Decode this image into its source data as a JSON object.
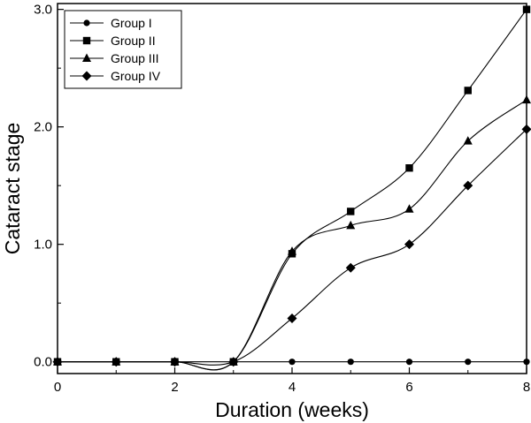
{
  "chart_data": {
    "type": "line",
    "xlabel": "Duration (weeks)",
    "ylabel": "Cataract stage",
    "xlim": [
      0,
      8
    ],
    "ylim": [
      -0.1,
      3.05
    ],
    "x_ticks": [
      0,
      2,
      4,
      6,
      8
    ],
    "x_tick_labels": [
      "0",
      "2",
      "4",
      "6",
      "8"
    ],
    "y_ticks": [
      0,
      1,
      2,
      3
    ],
    "y_tick_labels": [
      "0.0",
      "1.0",
      "2.0",
      "3.0"
    ],
    "grid": false,
    "legend_position": "top-left",
    "series": [
      {
        "name": "Group I",
        "marker": "circle",
        "x": [
          0,
          1,
          2,
          3,
          4,
          5,
          6,
          7,
          8
        ],
        "y": [
          0,
          0,
          0,
          0,
          0,
          0,
          0,
          0,
          0
        ]
      },
      {
        "name": "Group II",
        "marker": "square",
        "x": [
          0,
          1,
          2,
          3,
          4,
          5,
          6,
          7,
          8
        ],
        "y": [
          0,
          0,
          0,
          0,
          0.92,
          1.28,
          1.65,
          2.31,
          3.0
        ]
      },
      {
        "name": "Group III",
        "marker": "triangle",
        "x": [
          0,
          1,
          2,
          3,
          4,
          5,
          6,
          7,
          8
        ],
        "y": [
          0,
          0,
          0,
          0,
          0.94,
          1.16,
          1.3,
          1.88,
          2.23
        ]
      },
      {
        "name": "Group IV",
        "marker": "diamond",
        "x": [
          0,
          1,
          2,
          3,
          4,
          5,
          6,
          7,
          8
        ],
        "y": [
          0,
          0,
          0,
          0,
          0.37,
          0.8,
          1.0,
          1.5,
          1.98
        ]
      }
    ]
  }
}
